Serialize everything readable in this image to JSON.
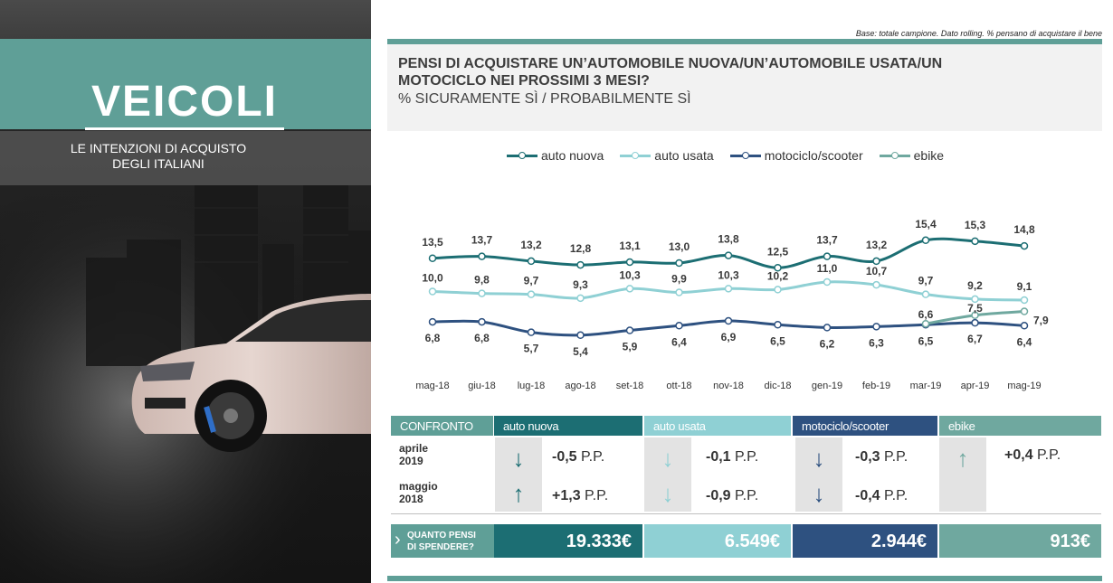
{
  "left_panel": {
    "title": "VEICOLI",
    "subtitle_line1": "LE INTENZIONI  DI ACQUISTO",
    "subtitle_line2": "DEGLI ITALIANI"
  },
  "base_note": "Base: totale campione.  Dato rolling. % pensano di acquistare il bene",
  "question": {
    "title": "PENSI DI ACQUISTARE UN’AUTOMOBILE NUOVA/UN’AUTOMOBILE USATA/UN MOTOCICLO  NEI PROSSIMI 3 MESI?",
    "subtitle": "% SICURAMENTE SÌ / PROBABILMENTE SÌ"
  },
  "colors": {
    "auto_nuova": "#1c6e73",
    "auto_usata": "#8fd0d4",
    "motociclo": "#2e5180",
    "ebike": "#6fa89f",
    "teal_panel": "#5f9f97"
  },
  "chart_data": {
    "type": "line",
    "categories": [
      "mag-18",
      "giu-18",
      "lug-18",
      "ago-18",
      "set-18",
      "ott-18",
      "nov-18",
      "dic-18",
      "gen-19",
      "feb-19",
      "mar-19",
      "apr-19",
      "mag-19"
    ],
    "series": [
      {
        "name": "auto nuova",
        "values": [
          13.5,
          13.7,
          13.2,
          12.8,
          13.1,
          13.0,
          13.8,
          12.5,
          13.7,
          13.2,
          15.4,
          15.3,
          14.8
        ],
        "labels": [
          "13,5",
          "13,7",
          "13,2",
          "12,8",
          "13,1",
          "13,0",
          "13,8",
          "12,5",
          "13,7",
          "13,2",
          "15,4",
          "15,3",
          "14,8"
        ]
      },
      {
        "name": "auto usata",
        "values": [
          10.0,
          9.8,
          9.7,
          9.3,
          10.3,
          9.9,
          10.3,
          10.2,
          11.0,
          10.7,
          9.7,
          9.2,
          9.1
        ],
        "labels": [
          "10,0",
          "9,8",
          "9,7",
          "9,3",
          "10,3",
          "9,9",
          "10,3",
          "10,2",
          "11,0",
          "10,7",
          "9,7",
          "9,2",
          "9,1"
        ]
      },
      {
        "name": "motociclo/scooter",
        "values": [
          6.8,
          6.8,
          5.7,
          5.4,
          5.9,
          6.4,
          6.9,
          6.5,
          6.2,
          6.3,
          6.5,
          6.7,
          6.4
        ],
        "labels": [
          "6,8",
          "6,8",
          "5,7",
          "5,4",
          "5,9",
          "6,4",
          "6,9",
          "6,5",
          "6,2",
          "6,3",
          "6,5",
          "6,7",
          "6,4"
        ]
      },
      {
        "name": "ebike",
        "values": [
          null,
          null,
          null,
          null,
          null,
          null,
          null,
          null,
          null,
          null,
          6.6,
          7.5,
          7.9
        ],
        "labels": [
          "",
          "",
          "",
          "",
          "",
          "",
          "",
          "",
          "",
          "",
          "6,6",
          "7,5",
          "7,9"
        ]
      }
    ]
  },
  "comparison": {
    "header_label": "CONFRONTO",
    "categories": [
      "auto nuova",
      "auto usata",
      "motociclo/scooter",
      "ebike"
    ],
    "row_labels": [
      [
        "aprile",
        "2019"
      ],
      [
        "maggio",
        "2018"
      ]
    ],
    "rows": [
      [
        {
          "arrow": "down",
          "value": "-0,5",
          "unit": "P.P."
        },
        {
          "arrow": "down",
          "value": "-0,1",
          "unit": "P.P."
        },
        {
          "arrow": "down",
          "value": "-0,3",
          "unit": "P.P."
        },
        {
          "arrow": "up",
          "value": "+0,4",
          "unit": "P.P."
        }
      ],
      [
        {
          "arrow": "up",
          "value": "+1,3",
          "unit": "P.P."
        },
        {
          "arrow": "down",
          "value": "-0,9",
          "unit": "P.P."
        },
        {
          "arrow": "down",
          "value": "-0,4",
          "unit": "P.P."
        }
      ]
    ]
  },
  "spend": {
    "label_line1": "QUANTO PENSI",
    "label_line2": "DI SPENDERE?",
    "values": [
      "19.333€",
      "6.549€",
      "2.944€",
      "913€"
    ]
  }
}
